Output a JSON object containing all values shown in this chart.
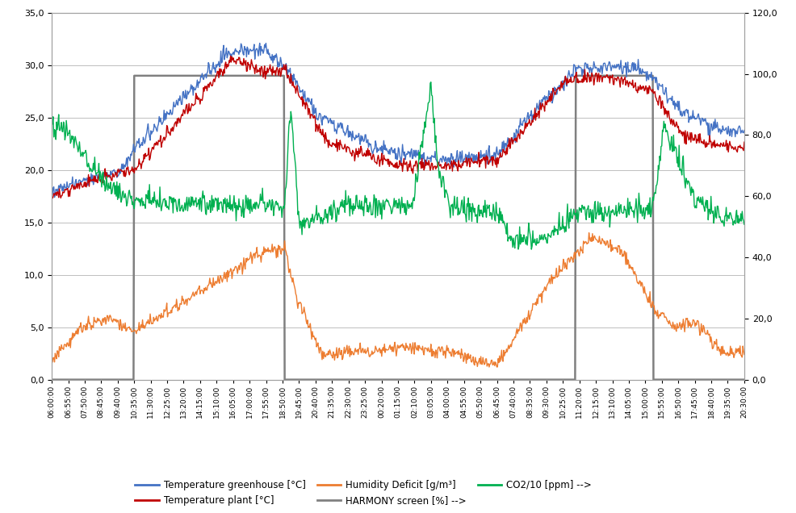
{
  "title": "",
  "ylim_left": [
    0.0,
    35.0
  ],
  "ylim_right": [
    0.0,
    120.0
  ],
  "yticks_left": [
    0.0,
    5.0,
    10.0,
    15.0,
    20.0,
    25.0,
    30.0,
    35.0
  ],
  "yticks_right": [
    0.0,
    20.0,
    40.0,
    60.0,
    80.0,
    100.0,
    120.0
  ],
  "colors": {
    "temp_greenhouse": "#4472C4",
    "temp_plant": "#C00000",
    "humidity_deficit": "#ED7D31",
    "harmony_screen": "#808080",
    "co2": "#00B050"
  },
  "legend": {
    "temp_greenhouse": "Temperature greenhouse [°C]",
    "temp_plant": "Temperature plant [°C]",
    "humidity_deficit": "Humidity Deficit [g/m³]",
    "harmony_screen": "HARMONY screen [%] -->",
    "co2": "CO2/10 [ppm] -->"
  },
  "x_tick_labels": [
    "06:00:00",
    "06:55:00",
    "07:50:00",
    "08:45:00",
    "09:40:00",
    "10:35:00",
    "11:30:00",
    "12:25:00",
    "13:20:00",
    "14:15:00",
    "15:10:00",
    "16:05:00",
    "17:00:00",
    "17:55:00",
    "18:50:00",
    "19:45:00",
    "20:40:00",
    "21:35:00",
    "22:30:00",
    "23:25:00",
    "00:20:00",
    "01:15:00",
    "02:10:00",
    "03:05:00",
    "04:00:00",
    "04:55:00",
    "05:50:00",
    "06:45:00",
    "07:40:00",
    "08:35:00",
    "09:30:00",
    "10:25:00",
    "11:20:00",
    "12:15:00",
    "13:10:00",
    "14:05:00",
    "15:00:00",
    "15:55:00",
    "16:50:00",
    "17:45:00",
    "18:40:00",
    "19:35:00",
    "20:30:00"
  ],
  "background_color": "#FFFFFF",
  "grid_color": "#BFBFBF"
}
